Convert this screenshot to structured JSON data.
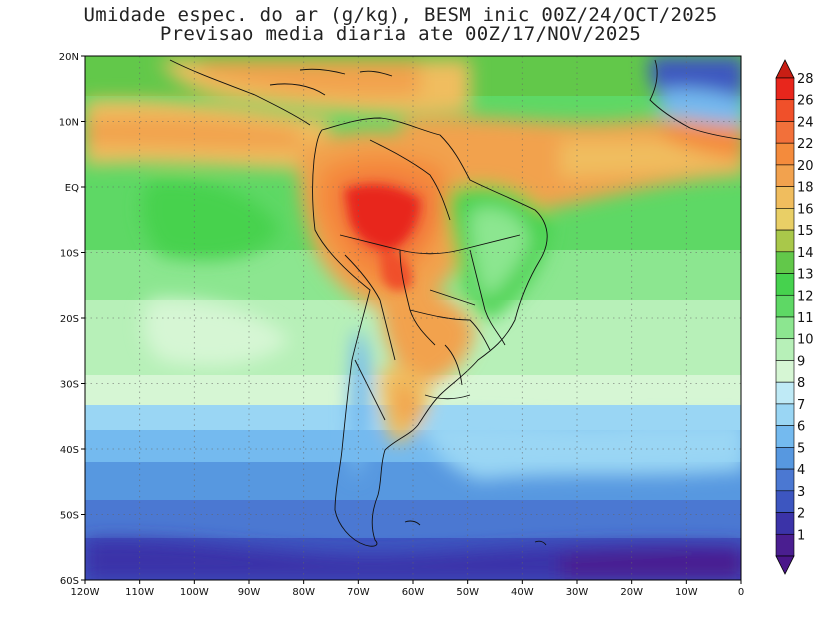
{
  "header": {
    "title_line1": "Umidade espec. do ar (g/kg), BESM inic 00Z/24/OCT/2025",
    "title_line2": "Previsao media diaria ate 00Z/17/NOV/2025"
  },
  "map": {
    "lon_range": [
      -120,
      0
    ],
    "lat_range": [
      -60,
      20
    ],
    "lat_labels": [
      "20N",
      "10N",
      "EQ",
      "10S",
      "20S",
      "30S",
      "40S",
      "50S",
      "60S"
    ],
    "lon_labels": [
      "120W",
      "110W",
      "100W",
      "90W",
      "80W",
      "70W",
      "60W",
      "50W",
      "40W",
      "30W",
      "20W",
      "10W",
      "0"
    ],
    "gridlines": "dotted"
  },
  "colorbar": {
    "levels": [
      "28",
      "26",
      "24",
      "22",
      "20",
      "18",
      "16",
      "15",
      "14",
      "13",
      "12",
      "11",
      "10",
      "9",
      "8",
      "7",
      "6",
      "5",
      "4",
      "3",
      "2",
      "1"
    ],
    "colors": [
      "#e8261c",
      "#f0502a",
      "#f2703a",
      "#f48b3c",
      "#f2a24e",
      "#f0bd5e",
      "#e9cf66",
      "#a9c84a",
      "#62c84a",
      "#46d24e",
      "#5ed865",
      "#8ce690",
      "#b7f0b8",
      "#d6f6d4",
      "#bfeaf6",
      "#9ad6f4",
      "#74baef",
      "#5798e0",
      "#4b78d2",
      "#3d56c0",
      "#3b33a8",
      "#4a1e90"
    ],
    "top_arrow_color": "#c81e14",
    "bottom_arrow_color": "#4a168a"
  }
}
